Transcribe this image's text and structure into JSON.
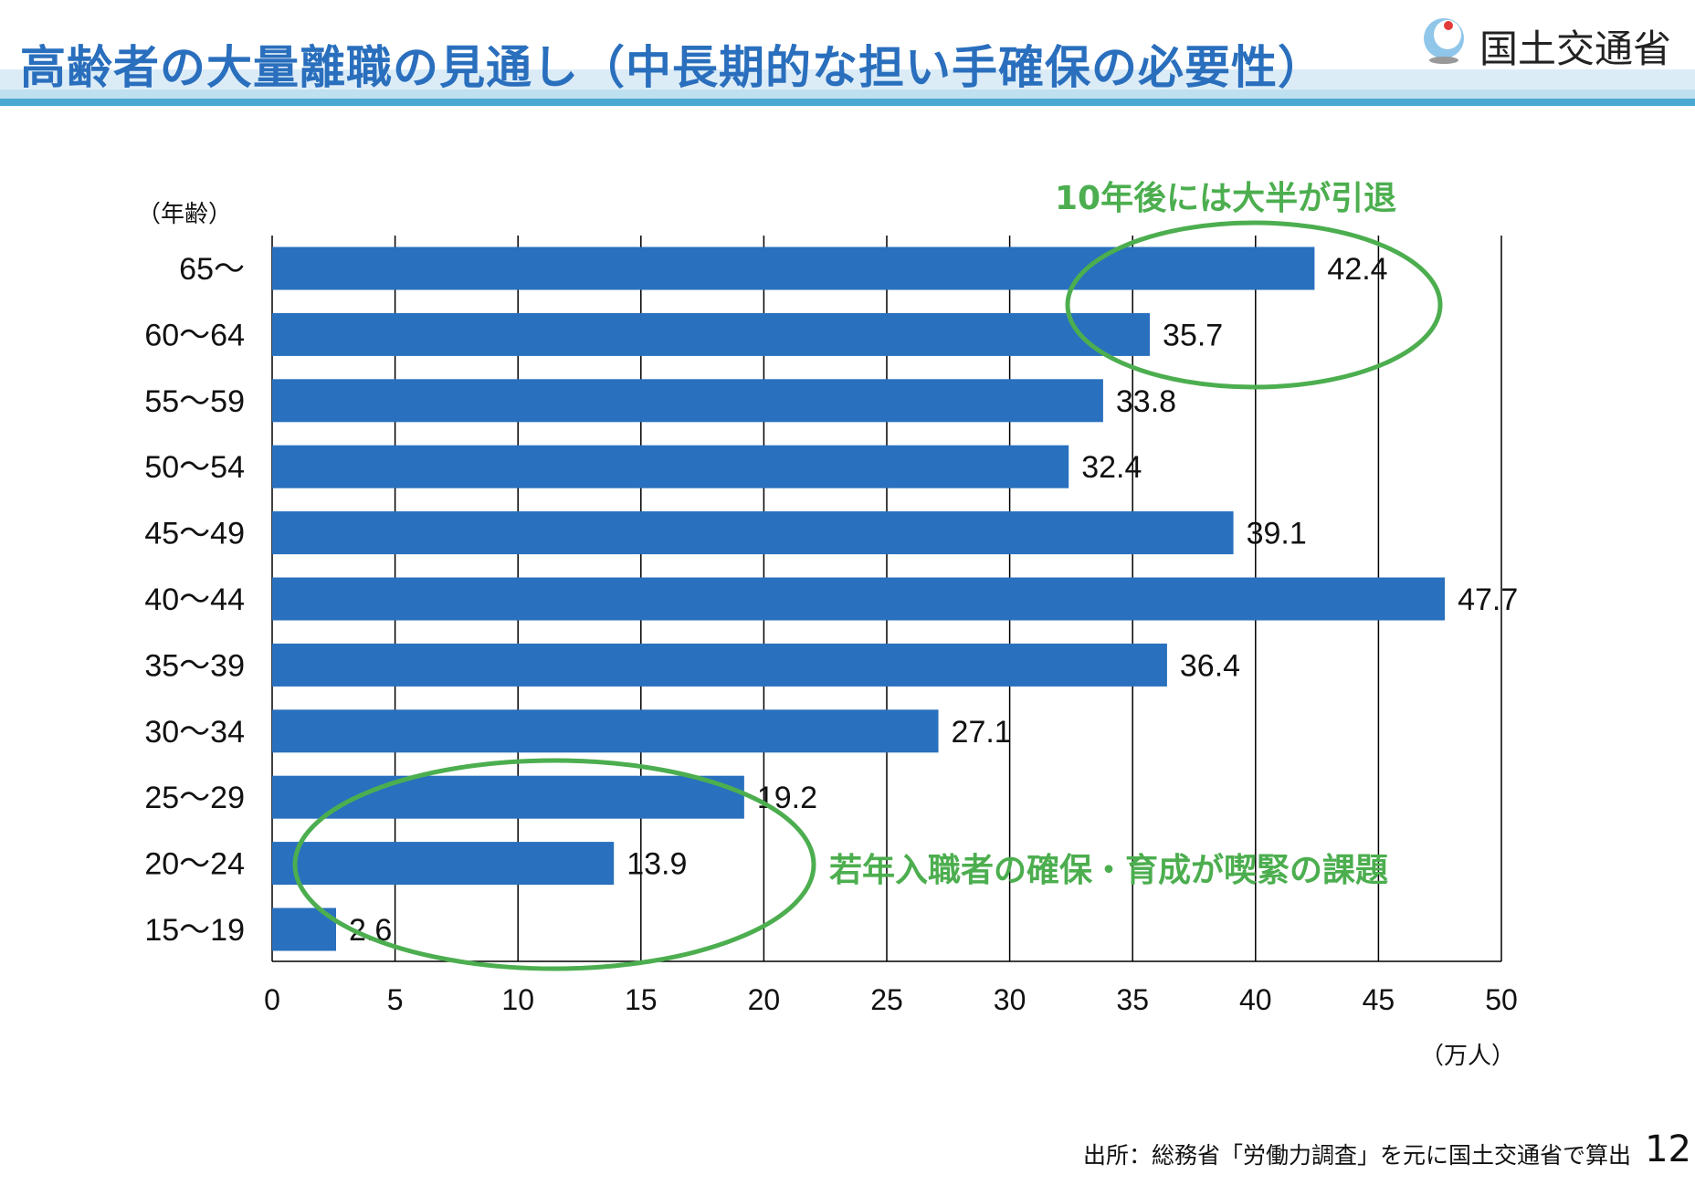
{
  "header": {
    "title": "高齢者の大量離職の見通し（中長期的な担い手確保の必要性）",
    "ministry": "国土交通省",
    "accent": "#2a6fbd"
  },
  "chart_data": {
    "type": "bar",
    "orientation": "horizontal",
    "categories": [
      "65～",
      "60～64",
      "55～59",
      "50～54",
      "45～49",
      "40～44",
      "35～39",
      "30～34",
      "25～29",
      "20～24",
      "15～19"
    ],
    "values": [
      42.4,
      35.7,
      33.8,
      32.4,
      39.1,
      47.7,
      36.4,
      27.1,
      19.2,
      13.9,
      2.6
    ],
    "value_labels": [
      "42.4",
      "35.7",
      "33.8",
      "32.4",
      "39.1",
      "47.7",
      "36.4",
      "27.1",
      "19.2",
      "13.9",
      "2.6"
    ],
    "ylabel": "（年齢）",
    "xlabel": "（万人）",
    "xlim": [
      0,
      50
    ],
    "xticks": [
      "0",
      "5",
      "10",
      "15",
      "20",
      "25",
      "30",
      "35",
      "40",
      "45",
      "50"
    ],
    "grid": true,
    "bar_color": "#2970be",
    "annotations": [
      {
        "text": "10年後には大半が引退",
        "color": "#4cae4f"
      },
      {
        "text": "若年入職者の確保・育成が喫緊の課題",
        "color": "#4cae4f"
      }
    ]
  },
  "footer": {
    "source": "出所：総務省「労働力調査」を元に国土交通省で算出",
    "page_number": "12"
  }
}
